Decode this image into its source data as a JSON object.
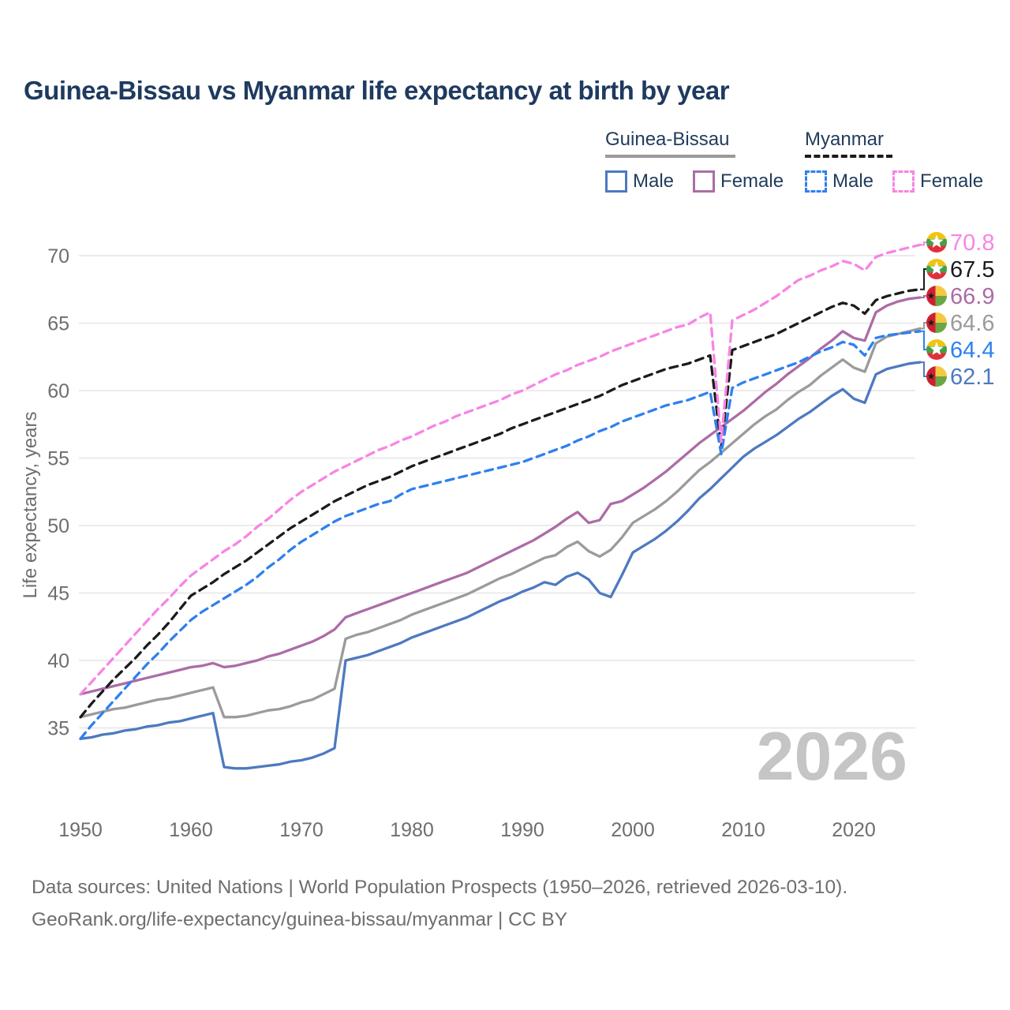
{
  "title": "Guinea-Bissau vs Myanmar life expectancy at birth by year",
  "watermark": "2026",
  "colors": {
    "title_text": "#1e3a5f",
    "axis_text": "#6e6e6e",
    "gridline": "#ebebeb",
    "watermark": "#c5c5c5",
    "gb_male": "#4d79c0",
    "gb_female": "#ac6ca6",
    "gb_all": "#9b9b9b",
    "mm_male": "#2e80ef",
    "mm_female": "#f884e4",
    "mm_all": "#1b1b1b"
  },
  "legend": {
    "groups": [
      {
        "label": "Guinea-Bissau",
        "line_style": "solid",
        "underline_color": "#9a9a9a",
        "items": [
          {
            "label": "Male",
            "color": "#4d79c0"
          },
          {
            "label": "Female",
            "color": "#ac6ca6"
          }
        ]
      },
      {
        "label": "Myanmar",
        "line_style": "dashed",
        "underline_color": "#1b1b1b",
        "items": [
          {
            "label": "Male",
            "color": "#2e80ef"
          },
          {
            "label": "Female",
            "color": "#f884e4"
          }
        ]
      }
    ]
  },
  "y_axis": {
    "title": "Life expectancy, years",
    "ticks": [
      35,
      40,
      45,
      50,
      55,
      60,
      65,
      70
    ]
  },
  "x_axis": {
    "ticks": [
      1950,
      1960,
      1970,
      1980,
      1990,
      2000,
      2010,
      2020
    ]
  },
  "end_labels": [
    {
      "value": "70.8",
      "series": "mm_female",
      "flag": "myanmar",
      "color": "#f884e4"
    },
    {
      "value": "67.5",
      "series": "mm_all",
      "flag": "myanmar",
      "color": "#1b1b1b"
    },
    {
      "value": "66.9",
      "series": "gb_female",
      "flag": "guinea-bissau",
      "color": "#ac6ca6"
    },
    {
      "value": "64.6",
      "series": "gb_all",
      "flag": "guinea-bissau",
      "color": "#9b9b9b"
    },
    {
      "value": "64.4",
      "series": "mm_male",
      "flag": "myanmar",
      "color": "#2e80ef"
    },
    {
      "value": "62.1",
      "series": "gb_male",
      "flag": "guinea-bissau",
      "color": "#4d79c0"
    }
  ],
  "flag_colors": {
    "myanmar": {
      "yellow": "#f1c40f",
      "green": "#43a047",
      "red": "#e02f3c",
      "star": "#ffffff"
    },
    "guinea_bissau": {
      "red": "#ce2031",
      "yellow": "#f5c843",
      "green": "#6aa743",
      "star": "#1a1a1a"
    }
  },
  "footer": {
    "line1": "Data sources: United Nations | World Population Prospects (1950–2026, retrieved 2026-03-10).",
    "line2": "GeoRank.org/life-expectancy/guinea-bissau/myanmar | CC BY"
  },
  "chart_data": {
    "type": "line",
    "title": "Guinea-Bissau vs Myanmar life expectancy at birth by year",
    "xlabel": "",
    "ylabel": "Life expectancy, years",
    "x_start": 1950,
    "x_end": 2026,
    "xlim": [
      1950,
      2026
    ],
    "ylim": [
      31,
      72
    ],
    "grid": "horizontal",
    "legend_position": "top-right",
    "series": [
      {
        "id": "gb_all",
        "name": "Guinea-Bissau All",
        "country": "Guinea-Bissau",
        "sex": "all",
        "line_style": "solid",
        "color": "#9b9b9b",
        "end_value": 64.6,
        "values": [
          35.8,
          36.0,
          36.2,
          36.4,
          36.5,
          36.7,
          36.9,
          37.1,
          37.2,
          37.4,
          37.6,
          37.8,
          38.0,
          35.8,
          35.8,
          35.9,
          36.1,
          36.3,
          36.4,
          36.6,
          36.9,
          37.1,
          37.5,
          37.9,
          41.6,
          41.9,
          42.1,
          42.4,
          42.7,
          43.0,
          43.4,
          43.7,
          44.0,
          44.3,
          44.6,
          44.9,
          45.3,
          45.7,
          46.1,
          46.4,
          46.8,
          47.2,
          47.6,
          47.8,
          48.4,
          48.8,
          48.1,
          47.7,
          48.2,
          49.1,
          50.2,
          50.7,
          51.2,
          51.8,
          52.5,
          53.3,
          54.1,
          54.7,
          55.4,
          56.1,
          56.8,
          57.5,
          58.1,
          58.6,
          59.3,
          59.9,
          60.4,
          61.1,
          61.7,
          62.3,
          61.7,
          61.4,
          63.5,
          64.0,
          64.2,
          64.4,
          64.6
        ]
      },
      {
        "id": "gb_male",
        "name": "Guinea-Bissau Male",
        "country": "Guinea-Bissau",
        "sex": "male",
        "line_style": "solid",
        "color": "#4d79c0",
        "end_value": 62.1,
        "values": [
          34.2,
          34.3,
          34.5,
          34.6,
          34.8,
          34.9,
          35.1,
          35.2,
          35.4,
          35.5,
          35.7,
          35.9,
          36.1,
          32.1,
          32.0,
          32.0,
          32.1,
          32.2,
          32.3,
          32.5,
          32.6,
          32.8,
          33.1,
          33.5,
          40.0,
          40.2,
          40.4,
          40.7,
          41.0,
          41.3,
          41.7,
          42.0,
          42.3,
          42.6,
          42.9,
          43.2,
          43.6,
          44.0,
          44.4,
          44.7,
          45.1,
          45.4,
          45.8,
          45.6,
          46.2,
          46.5,
          46.0,
          45.0,
          44.7,
          46.3,
          48.0,
          48.5,
          49.0,
          49.6,
          50.3,
          51.1,
          52.0,
          52.7,
          53.5,
          54.3,
          55.1,
          55.7,
          56.2,
          56.7,
          57.3,
          57.9,
          58.4,
          59.0,
          59.6,
          60.1,
          59.4,
          59.1,
          61.2,
          61.6,
          61.8,
          62.0,
          62.1
        ]
      },
      {
        "id": "gb_female",
        "name": "Guinea-Bissau Female",
        "country": "Guinea-Bissau",
        "sex": "female",
        "line_style": "solid",
        "color": "#ac6ca6",
        "end_value": 66.9,
        "values": [
          37.5,
          37.7,
          37.9,
          38.1,
          38.3,
          38.5,
          38.7,
          38.9,
          39.1,
          39.3,
          39.5,
          39.6,
          39.8,
          39.5,
          39.6,
          39.8,
          40.0,
          40.3,
          40.5,
          40.8,
          41.1,
          41.4,
          41.8,
          42.3,
          43.2,
          43.5,
          43.8,
          44.1,
          44.4,
          44.7,
          45.0,
          45.3,
          45.6,
          45.9,
          46.2,
          46.5,
          46.9,
          47.3,
          47.7,
          48.1,
          48.5,
          48.9,
          49.4,
          49.9,
          50.5,
          51.0,
          50.2,
          50.4,
          51.6,
          51.8,
          52.3,
          52.8,
          53.4,
          54.0,
          54.7,
          55.4,
          56.1,
          56.7,
          57.3,
          57.9,
          58.5,
          59.2,
          59.9,
          60.5,
          61.2,
          61.8,
          62.4,
          63.1,
          63.7,
          64.4,
          63.9,
          63.7,
          65.8,
          66.3,
          66.6,
          66.8,
          66.9
        ]
      },
      {
        "id": "mm_all",
        "name": "Myanmar All",
        "country": "Myanmar",
        "sex": "all",
        "line_style": "dashed",
        "color": "#1b1b1b",
        "end_value": 67.5,
        "values": [
          35.8,
          36.8,
          37.7,
          38.6,
          39.4,
          40.2,
          41.1,
          41.9,
          42.8,
          43.8,
          44.8,
          45.3,
          45.8,
          46.4,
          46.9,
          47.4,
          48.0,
          48.6,
          49.2,
          49.8,
          50.3,
          50.8,
          51.3,
          51.8,
          52.2,
          52.6,
          53.0,
          53.3,
          53.6,
          54.0,
          54.4,
          54.7,
          55.0,
          55.3,
          55.6,
          55.9,
          56.2,
          56.5,
          56.8,
          57.2,
          57.5,
          57.8,
          58.1,
          58.4,
          58.7,
          59.0,
          59.3,
          59.6,
          60.0,
          60.4,
          60.7,
          61.0,
          61.3,
          61.6,
          61.8,
          62.0,
          62.3,
          62.6,
          55.8,
          63.0,
          63.3,
          63.6,
          63.9,
          64.2,
          64.6,
          65.0,
          65.4,
          65.8,
          66.2,
          66.5,
          66.3,
          65.7,
          66.7,
          67.0,
          67.2,
          67.4,
          67.5
        ]
      },
      {
        "id": "mm_male",
        "name": "Myanmar Male",
        "country": "Myanmar",
        "sex": "male",
        "line_style": "dashed",
        "color": "#2e80ef",
        "end_value": 64.4,
        "values": [
          34.2,
          35.2,
          36.1,
          37.0,
          37.9,
          38.8,
          39.7,
          40.5,
          41.4,
          42.2,
          43.0,
          43.6,
          44.1,
          44.6,
          45.1,
          45.6,
          46.2,
          46.9,
          47.5,
          48.2,
          48.8,
          49.3,
          49.8,
          50.3,
          50.7,
          51.0,
          51.3,
          51.6,
          51.8,
          52.3,
          52.7,
          52.9,
          53.1,
          53.3,
          53.5,
          53.7,
          53.9,
          54.1,
          54.3,
          54.5,
          54.7,
          55.0,
          55.3,
          55.6,
          55.9,
          56.3,
          56.6,
          57.0,
          57.3,
          57.7,
          58.0,
          58.3,
          58.6,
          58.9,
          59.1,
          59.3,
          59.6,
          59.9,
          55.3,
          60.2,
          60.6,
          60.9,
          61.2,
          61.5,
          61.8,
          62.1,
          62.5,
          62.9,
          63.2,
          63.6,
          63.4,
          62.6,
          63.9,
          64.1,
          64.2,
          64.3,
          64.4
        ]
      },
      {
        "id": "mm_female",
        "name": "Myanmar Female",
        "country": "Myanmar",
        "sex": "female",
        "line_style": "dashed",
        "color": "#f884e4",
        "end_value": 70.8,
        "values": [
          37.5,
          38.4,
          39.3,
          40.2,
          41.1,
          42.0,
          42.9,
          43.8,
          44.6,
          45.5,
          46.3,
          46.9,
          47.5,
          48.1,
          48.6,
          49.2,
          49.9,
          50.5,
          51.2,
          51.9,
          52.5,
          53.0,
          53.5,
          54.0,
          54.4,
          54.8,
          55.2,
          55.6,
          55.9,
          56.3,
          56.6,
          57.0,
          57.4,
          57.7,
          58.1,
          58.4,
          58.7,
          59.0,
          59.3,
          59.7,
          60.0,
          60.4,
          60.8,
          61.2,
          61.5,
          61.9,
          62.2,
          62.5,
          62.9,
          63.2,
          63.5,
          63.8,
          64.1,
          64.4,
          64.7,
          64.9,
          65.4,
          65.8,
          56.2,
          65.2,
          65.6,
          66.0,
          66.5,
          67.0,
          67.6,
          68.2,
          68.5,
          68.9,
          69.2,
          69.6,
          69.4,
          68.9,
          69.9,
          70.2,
          70.4,
          70.6,
          70.8
        ]
      }
    ]
  }
}
